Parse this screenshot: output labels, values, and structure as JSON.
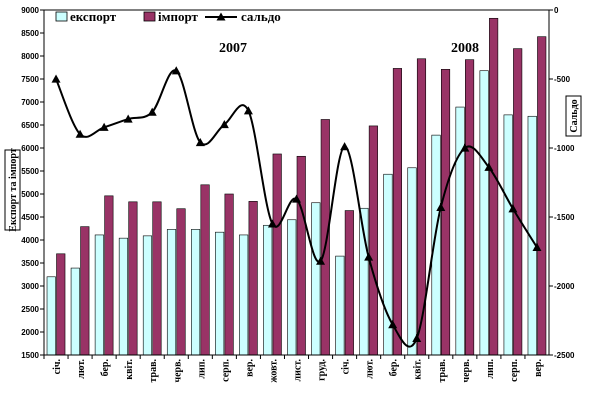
{
  "chart_data": {
    "type": "bar",
    "categories": [
      "січ.",
      "лют.",
      "бер.",
      "квіт.",
      "трав.",
      "черв.",
      "лип.",
      "серп.",
      "вер.",
      "жовт.",
      "лист.",
      "груд.",
      "січ.",
      "лют.",
      "бер.",
      "квіт.",
      "трав.",
      "черв.",
      "лип.",
      "серп.",
      "вер."
    ],
    "series": [
      {
        "name": "експорт",
        "kind": "bar",
        "axis": "left",
        "color": "#ccffff",
        "values": [
          3200,
          3390,
          4110,
          4040,
          4090,
          4230,
          4230,
          4170,
          4110,
          4320,
          4440,
          4810,
          3650,
          4690,
          5430,
          5570,
          6280,
          6890,
          7680,
          6720,
          6690
        ]
      },
      {
        "name": "імпорт",
        "kind": "bar",
        "axis": "left",
        "color": "#993366",
        "values": [
          3700,
          4290,
          4960,
          4830,
          4830,
          4680,
          5200,
          5000,
          4840,
          5870,
          5820,
          6620,
          4640,
          6480,
          7730,
          7940,
          7710,
          7920,
          8820,
          8160,
          8420
        ]
      },
      {
        "name": "сальдо",
        "kind": "line",
        "axis": "right",
        "color": "#000000",
        "values": [
          -500,
          -900,
          -850,
          -790,
          -740,
          -440,
          -960,
          -830,
          -730,
          -1550,
          -1370,
          -1820,
          -990,
          -1790,
          -2280,
          -2380,
          -1430,
          -1000,
          -1140,
          -1440,
          -1720
        ]
      }
    ],
    "left_axis": {
      "label": "Експорт та імпорт",
      "min": 1500,
      "max": 9000,
      "step": 500
    },
    "right_axis": {
      "label": "Сальдо",
      "min": -2500,
      "max": 0,
      "step": 500
    },
    "annotations": [
      "2007",
      "2008"
    ],
    "legend": {
      "position": "top-left",
      "entries": [
        "експорт",
        "імпорт",
        "сальдо"
      ]
    },
    "grid": false
  }
}
